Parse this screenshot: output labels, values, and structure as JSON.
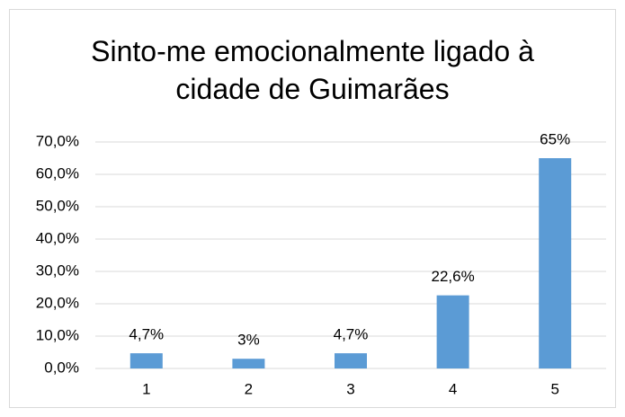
{
  "chart_data": {
    "type": "bar",
    "title": "Sinto-me emocionalmente ligado à cidade de Guimarães",
    "categories": [
      "1",
      "2",
      "3",
      "4",
      "5"
    ],
    "values": [
      4.7,
      3,
      4.7,
      22.6,
      65
    ],
    "value_labels": [
      "4,7%",
      "3%",
      "4,7%",
      "22,6%",
      "65%"
    ],
    "color": "#5b9bd5",
    "ylim": [
      0,
      70
    ],
    "yticks": [
      {
        "value": 0,
        "label": "0,0%"
      },
      {
        "value": 10,
        "label": "10,0%"
      },
      {
        "value": 20,
        "label": "20,0%"
      },
      {
        "value": 30,
        "label": "30,0%"
      },
      {
        "value": 40,
        "label": "40,0%"
      },
      {
        "value": 50,
        "label": "50,0%"
      },
      {
        "value": 60,
        "label": "60,0%"
      },
      {
        "value": 70,
        "label": "70,0%"
      }
    ],
    "grid": true
  }
}
